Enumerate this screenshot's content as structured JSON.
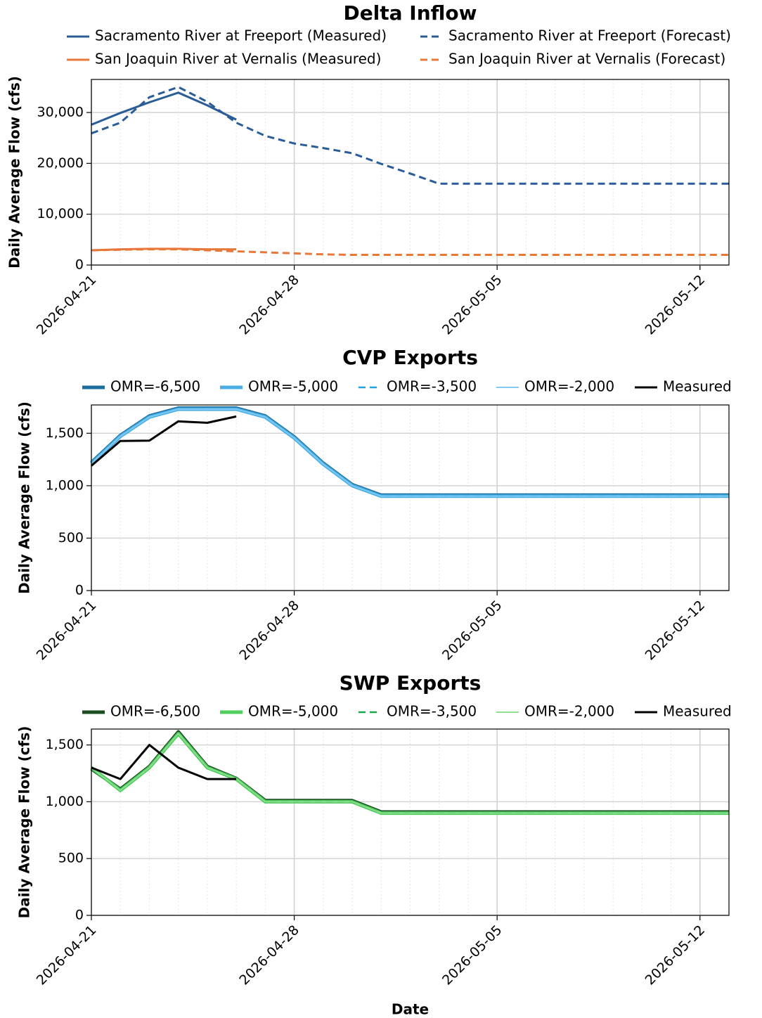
{
  "chart_data": [
    {
      "type": "line",
      "title": "Delta Inflow",
      "ylabel": "Daily Average Flow (cfs)",
      "x": [
        "2026-04-21",
        "2026-04-22",
        "2026-04-23",
        "2026-04-24",
        "2026-04-25",
        "2026-04-26",
        "2026-04-27",
        "2026-04-28",
        "2026-04-29",
        "2026-04-30",
        "2026-05-01",
        "2026-05-02",
        "2026-05-03",
        "2026-05-04",
        "2026-05-05",
        "2026-05-06",
        "2026-05-07",
        "2026-05-08",
        "2026-05-09",
        "2026-05-10",
        "2026-05-11",
        "2026-05-12",
        "2026-05-13"
      ],
      "xlim": [
        "2026-04-21",
        "2026-05-13"
      ],
      "xticks": [
        "2026-04-21",
        "2026-04-28",
        "2026-05-05",
        "2026-05-12"
      ],
      "ylim": [
        0,
        36500
      ],
      "yticks": [
        0,
        {
          "value": 10000,
          "label": "10,000"
        },
        {
          "value": 20000,
          "label": "20,000"
        },
        {
          "value": 30000,
          "label": "30,000"
        }
      ],
      "grid": true,
      "minor_grid": true,
      "legend": "upper center",
      "series": [
        {
          "name": "Sacramento River at Freeport (Measured)",
          "color": "#2a5d98",
          "linestyle": "solid",
          "linewidth": 3,
          "values": [
            27600,
            29900,
            32000,
            33900,
            31400,
            28600,
            null,
            null,
            null,
            null,
            null,
            null,
            null,
            null,
            null,
            null,
            null,
            null,
            null,
            null,
            null,
            null,
            null
          ]
        },
        {
          "name": "San Joaquin River at Vernalis (Measured)",
          "color": "#e8773a",
          "linestyle": "solid",
          "linewidth": 3,
          "values": [
            2900,
            3100,
            3200,
            3200,
            3100,
            3100,
            null,
            null,
            null,
            null,
            null,
            null,
            null,
            null,
            null,
            null,
            null,
            null,
            null,
            null,
            null,
            null,
            null
          ]
        },
        {
          "name": "Sacramento River at Freeport (Forecast)",
          "color": "#2a5d98",
          "linestyle": "dashed",
          "linewidth": 3,
          "values": [
            25900,
            28000,
            33000,
            35000,
            32100,
            28000,
            25400,
            23900,
            23000,
            22000,
            19900,
            18000,
            16000,
            16000,
            16000,
            16000,
            16000,
            16000,
            16000,
            16000,
            16000,
            16000,
            16000
          ]
        },
        {
          "name": "San Joaquin River at Vernalis (Forecast)",
          "color": "#e8773a",
          "linestyle": "dashed",
          "linewidth": 3,
          "values": [
            2900,
            3000,
            3100,
            3100,
            2900,
            2700,
            2500,
            2300,
            2100,
            2000,
            2000,
            2000,
            2000,
            2000,
            2000,
            2000,
            2000,
            2000,
            2000,
            2000,
            2000,
            2000,
            2000
          ]
        }
      ]
    },
    {
      "type": "line",
      "title": "CVP Exports",
      "ylabel": "Daily Average Flow (cfs)",
      "x": [
        "2026-04-21",
        "2026-04-22",
        "2026-04-23",
        "2026-04-24",
        "2026-04-25",
        "2026-04-26",
        "2026-04-27",
        "2026-04-28",
        "2026-04-29",
        "2026-04-30",
        "2026-05-01",
        "2026-05-02",
        "2026-05-03",
        "2026-05-04",
        "2026-05-05",
        "2026-05-06",
        "2026-05-07",
        "2026-05-08",
        "2026-05-09",
        "2026-05-10",
        "2026-05-11",
        "2026-05-12",
        "2026-05-13"
      ],
      "xlim": [
        "2026-04-21",
        "2026-05-13"
      ],
      "xticks": [
        "2026-04-21",
        "2026-04-28",
        "2026-05-05",
        "2026-05-12"
      ],
      "ylim": [
        0,
        1770
      ],
      "yticks": [
        0,
        500,
        {
          "value": 1000,
          "label": "1,000"
        },
        {
          "value": 1500,
          "label": "1,500"
        }
      ],
      "grid": true,
      "minor_grid": true,
      "legend": "upper center",
      "series": [
        {
          "name": "OMR=-6,500",
          "color": "#1a6d9e",
          "linestyle": "solid",
          "linewidth": 5,
          "values": [
            1220,
            1480,
            1665,
            1740,
            1740,
            1740,
            1665,
            1465,
            1215,
            1010,
            910,
            910,
            910,
            910,
            910,
            910,
            910,
            910,
            910,
            910,
            910,
            910,
            910
          ]
        },
        {
          "name": "OMR=-5,000",
          "color": "#4aaee3",
          "linestyle": "solid",
          "linewidth": 5,
          "values": [
            1210,
            1470,
            1655,
            1730,
            1730,
            1730,
            1655,
            1455,
            1205,
            1000,
            900,
            900,
            900,
            900,
            900,
            900,
            900,
            900,
            900,
            900,
            900,
            900,
            900
          ]
        },
        {
          "name": "OMR=-3,500",
          "color": "#1ea5e6",
          "linestyle": "dashed",
          "linewidth": 2.5,
          "values": [
            1210,
            1470,
            1655,
            1730,
            1730,
            1730,
            1655,
            1455,
            1205,
            1000,
            900,
            900,
            900,
            900,
            900,
            900,
            900,
            900,
            900,
            900,
            900,
            900,
            900
          ]
        },
        {
          "name": "OMR=-2,000",
          "color": "#7fcbf5",
          "linestyle": "solid",
          "linewidth": 2,
          "values": [
            1210,
            1470,
            1655,
            1730,
            1730,
            1730,
            1655,
            1455,
            1205,
            1000,
            900,
            900,
            900,
            900,
            900,
            900,
            900,
            900,
            900,
            900,
            900,
            900,
            900
          ]
        },
        {
          "name": "Measured",
          "color": "#000000",
          "linestyle": "solid",
          "linewidth": 3,
          "values": [
            1190,
            1427,
            1430,
            1614,
            1600,
            1660,
            null,
            null,
            null,
            null,
            null,
            null,
            null,
            null,
            null,
            null,
            null,
            null,
            null,
            null,
            null,
            null,
            null
          ]
        }
      ]
    },
    {
      "type": "line",
      "title": "SWP Exports",
      "ylabel": "Daily Average Flow (cfs)",
      "xlabel": "Date",
      "x": [
        "2026-04-21",
        "2026-04-22",
        "2026-04-23",
        "2026-04-24",
        "2026-04-25",
        "2026-04-26",
        "2026-04-27",
        "2026-04-28",
        "2026-04-29",
        "2026-04-30",
        "2026-05-01",
        "2026-05-02",
        "2026-05-03",
        "2026-05-04",
        "2026-05-05",
        "2026-05-06",
        "2026-05-07",
        "2026-05-08",
        "2026-05-09",
        "2026-05-10",
        "2026-05-11",
        "2026-05-12",
        "2026-05-13"
      ],
      "xlim": [
        "2026-04-21",
        "2026-05-13"
      ],
      "xticks": [
        "2026-04-21",
        "2026-04-28",
        "2026-05-05",
        "2026-05-12"
      ],
      "ylim": [
        0,
        1640
      ],
      "yticks": [
        0,
        500,
        {
          "value": 1000,
          "label": "1,000"
        },
        {
          "value": 1500,
          "label": "1,500"
        }
      ],
      "grid": true,
      "minor_grid": true,
      "legend": "upper center",
      "series": [
        {
          "name": "OMR=-6,500",
          "color": "#1b4d20",
          "linestyle": "solid",
          "linewidth": 5,
          "values": [
            1290,
            1110,
            1310,
            1615,
            1310,
            1205,
            1010,
            1010,
            1010,
            1010,
            910,
            910,
            910,
            910,
            910,
            910,
            910,
            910,
            910,
            910,
            910,
            910,
            910
          ]
        },
        {
          "name": "OMR=-5,000",
          "color": "#4fcf5c",
          "linestyle": "solid",
          "linewidth": 5,
          "values": [
            1300,
            1100,
            1300,
            1600,
            1300,
            1200,
            1000,
            1000,
            1000,
            1000,
            900,
            900,
            900,
            900,
            900,
            900,
            900,
            900,
            900,
            900,
            900,
            900,
            900
          ]
        },
        {
          "name": "OMR=-3,500",
          "color": "#1aa84a",
          "linestyle": "dashed",
          "linewidth": 2.5,
          "values": [
            1300,
            1100,
            1300,
            1600,
            1300,
            1200,
            1000,
            1000,
            1000,
            1000,
            900,
            900,
            900,
            900,
            900,
            900,
            900,
            900,
            900,
            900,
            900,
            900,
            900
          ]
        },
        {
          "name": "OMR=-2,000",
          "color": "#90e092",
          "linestyle": "solid",
          "linewidth": 2,
          "values": [
            1300,
            1100,
            1300,
            1600,
            1300,
            1200,
            1000,
            1000,
            1000,
            1000,
            900,
            900,
            900,
            900,
            900,
            900,
            900,
            900,
            900,
            900,
            900,
            900,
            900
          ]
        },
        {
          "name": "Measured",
          "color": "#000000",
          "linestyle": "solid",
          "linewidth": 3,
          "values": [
            1300,
            1200,
            1500,
            1300,
            1200,
            1200,
            null,
            null,
            null,
            null,
            null,
            null,
            null,
            null,
            null,
            null,
            null,
            null,
            null,
            null,
            null,
            null,
            null
          ]
        }
      ]
    }
  ]
}
